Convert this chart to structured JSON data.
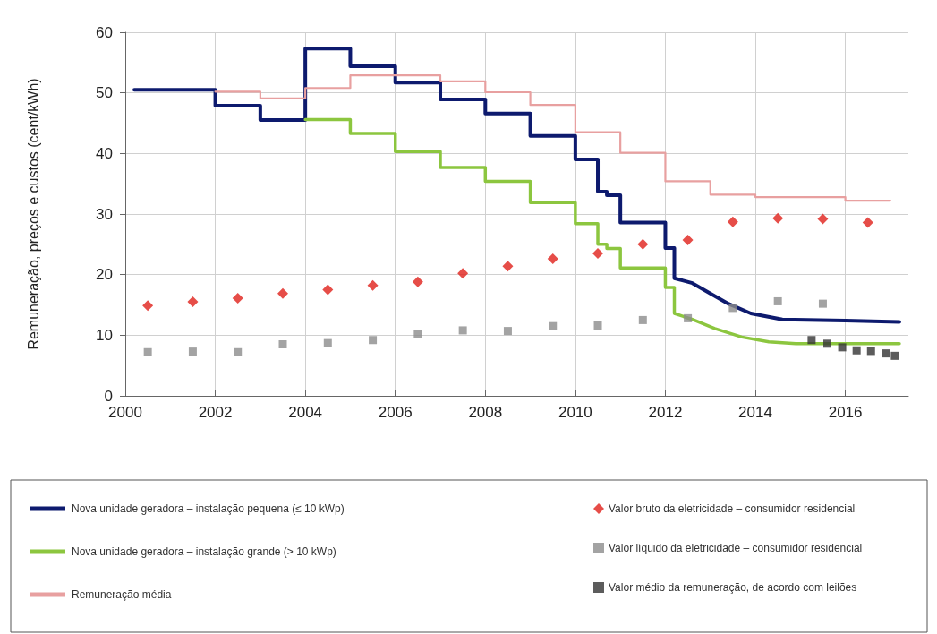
{
  "chart_data": {
    "type": "line",
    "ylabel": "Remuneração, preços e custos (cent/kWh)",
    "xlim": [
      2000,
      2017.4
    ],
    "xticks": [
      2000,
      2002,
      2004,
      2006,
      2008,
      2010,
      2012,
      2014,
      2016
    ],
    "ylim": [
      0,
      60
    ],
    "yticks": [
      0,
      10,
      20,
      30,
      40,
      50,
      60
    ],
    "grid": true,
    "legend": "bottom",
    "marker": "none",
    "line_style": "solid",
    "series": [
      {
        "name": "Nova unidade geradora – instalação pequena (≤ 10 kWp)",
        "color": "#0d1a6e",
        "x": [
          2000.2,
          2002,
          2002,
          2003,
          2003,
          2004,
          2004,
          2005,
          2005,
          2006,
          2006,
          2007,
          2007,
          2008,
          2008,
          2009,
          2009,
          2010,
          2010,
          2010.5,
          2010.5,
          2010.7,
          2010.7,
          2011,
          2011,
          2012,
          2012,
          2012.2,
          2012.2,
          2012.6,
          2013,
          2013.4,
          2013.9,
          2014.6,
          2016,
          2017.2
        ],
        "values": [
          50.5,
          50.5,
          47.9,
          47.9,
          45.5,
          45.5,
          57.3,
          57.3,
          54.4,
          54.4,
          51.7,
          51.7,
          48.9,
          48.9,
          46.6,
          46.6,
          42.9,
          42.9,
          39.0,
          39.0,
          33.7,
          33.7,
          33.1,
          33.1,
          28.6,
          28.6,
          24.4,
          24.4,
          19.4,
          18.6,
          16.9,
          15.2,
          13.6,
          12.6,
          12.4,
          12.2
        ]
      },
      {
        "name": "Nova unidade geradora – instalação grande (> 10 kWp)",
        "color": "#8cc63f",
        "x": [
          2004,
          2005,
          2005,
          2006,
          2006,
          2007,
          2007,
          2008,
          2008,
          2009,
          2009,
          2010,
          2010,
          2010.5,
          2010.5,
          2010.7,
          2010.7,
          2011,
          2011,
          2012,
          2012,
          2012.2,
          2012.2,
          2012.6,
          2013.1,
          2013.7,
          2014.3,
          2014.9,
          2017.2
        ],
        "values": [
          45.6,
          45.6,
          43.3,
          43.3,
          40.3,
          40.3,
          37.7,
          37.7,
          35.4,
          35.4,
          31.9,
          31.9,
          28.4,
          28.4,
          25.0,
          25.0,
          24.3,
          24.3,
          21.1,
          21.1,
          17.9,
          17.9,
          13.6,
          12.6,
          11.1,
          9.7,
          8.9,
          8.6,
          8.6
        ]
      },
      {
        "name": "Remuneração média",
        "color": "#e8a0a0",
        "x": [
          2002,
          2003,
          2003,
          2004,
          2004,
          2005,
          2005,
          2007,
          2007,
          2008,
          2008,
          2009,
          2009,
          2010,
          2010,
          2011,
          2011,
          2012,
          2012,
          2013,
          2013,
          2014,
          2014,
          2016,
          2016,
          2017
        ],
        "values": [
          50.2,
          50.2,
          49.1,
          49.1,
          50.8,
          50.8,
          52.9,
          52.9,
          51.9,
          51.9,
          50.1,
          50.1,
          48.0,
          48.0,
          43.5,
          43.5,
          40.1,
          40.1,
          35.4,
          35.4,
          33.2,
          33.2,
          32.8,
          32.8,
          32.2,
          32.2
        ]
      },
      {
        "name": "Valor bruto da eletricidade – consumidor residencial",
        "type": "scatter",
        "marker": "diamond",
        "color": "#e0201a",
        "x": [
          2000.5,
          2001.5,
          2002.5,
          2003.5,
          2004.5,
          2005.5,
          2006.5,
          2007.5,
          2008.5,
          2009.5,
          2010.5,
          2011.5,
          2012.5,
          2013.5,
          2014.5,
          2015.5,
          2016.5
        ],
        "values": [
          14.9,
          15.5,
          16.1,
          16.9,
          17.5,
          18.2,
          18.8,
          20.2,
          21.4,
          22.6,
          23.5,
          25.0,
          25.7,
          28.7,
          29.3,
          29.2,
          28.6
        ]
      },
      {
        "name": "Valor líquido da eletricidade – consumidor residencial",
        "type": "scatter",
        "marker": "square",
        "color": "#8c8c8c",
        "x": [
          2000.5,
          2001.5,
          2002.5,
          2003.5,
          2004.5,
          2005.5,
          2006.5,
          2007.5,
          2008.5,
          2009.5,
          2010.5,
          2011.5,
          2012.5,
          2013.5,
          2014.5,
          2015.5
        ],
        "values": [
          7.2,
          7.3,
          7.2,
          8.5,
          8.7,
          9.2,
          10.2,
          10.8,
          10.7,
          11.5,
          11.6,
          12.5,
          12.8,
          14.5,
          15.6,
          15.2
        ]
      },
      {
        "name": "Valor médio da remuneração, de acordo com leilões",
        "type": "scatter",
        "marker": "square",
        "color": "#333333",
        "x": [
          2015.25,
          2015.6,
          2015.93,
          2016.25,
          2016.57,
          2016.9,
          2017.1
        ],
        "values": [
          9.2,
          8.6,
          8.0,
          7.5,
          7.4,
          7.0,
          6.6
        ]
      }
    ]
  }
}
